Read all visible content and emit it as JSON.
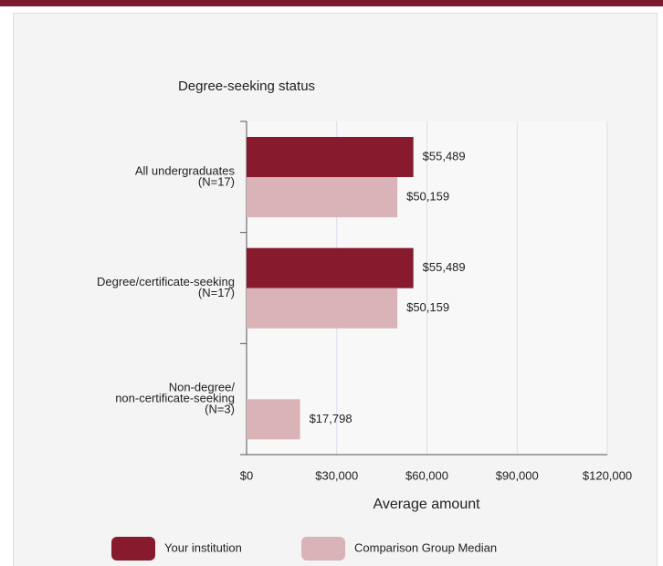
{
  "chart_data": {
    "type": "hbar",
    "title": "Degree-seeking status",
    "xlabel": "Average amount",
    "categories": [
      [
        "All undergraduates",
        "(N=17)"
      ],
      [
        "Degree/certificate-seeking",
        "(N=17)"
      ],
      [
        "Non-degree/",
        "non-certificate-seeking",
        "(N=3)"
      ]
    ],
    "series": [
      {
        "name": "Your institution",
        "color": "#871b2d",
        "values": [
          55489,
          55489,
          null
        ],
        "value_labels": [
          "$55,489",
          "$55,489",
          null
        ]
      },
      {
        "name": "Comparison Group Median",
        "color": "#d9b3b8",
        "values": [
          50159,
          50159,
          17798
        ],
        "value_labels": [
          "$50,159",
          "$50,159",
          "$17,798"
        ]
      }
    ],
    "xlim": [
      0,
      120000
    ],
    "xticks": [
      {
        "value": 0,
        "label": "$0"
      },
      {
        "value": 30000,
        "label": "$30,000"
      },
      {
        "value": 60000,
        "label": "$60,000"
      },
      {
        "value": 90000,
        "label": "$90,000"
      },
      {
        "value": 120000,
        "label": "$120,000"
      }
    ],
    "grid": true
  }
}
